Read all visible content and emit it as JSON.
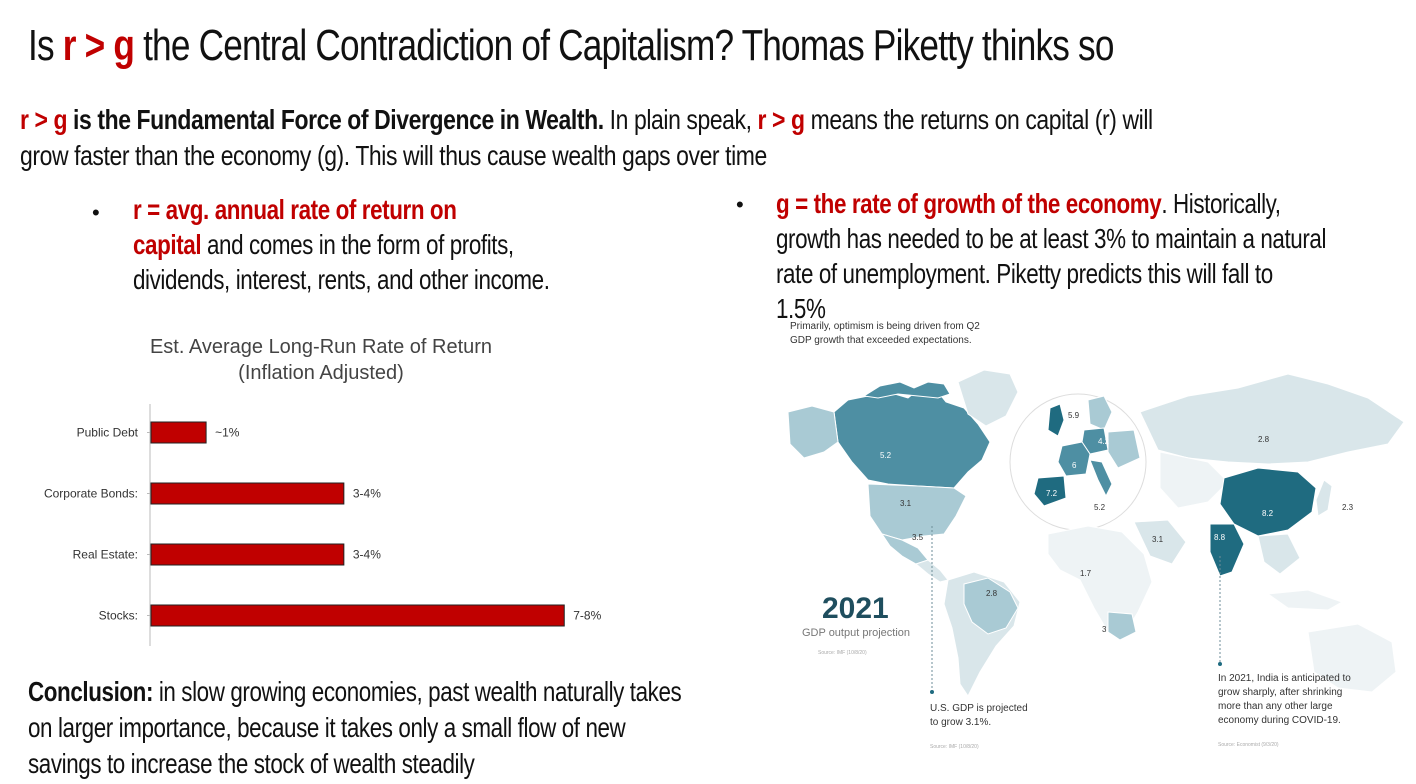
{
  "title": {
    "prefix": "Is ",
    "formula": "r > g",
    "suffix": " the Central Contradiction of Capitalism? Thomas Piketty thinks so"
  },
  "intro": {
    "formula_1": "r > g",
    "bold_text": " is the Fundamental Force of Divergence in Wealth.",
    "text_1": " In plain speak, ",
    "formula_2": "r > g",
    "text_2": " means the returns on capital (r) will",
    "line_2": "grow faster than the economy (g). This will thus cause wealth gaps over time"
  },
  "bullet_r": {
    "red_line_1": "r = avg. annual rate of return on",
    "red_line_2": "capital",
    "line_2_rest": " and comes in the form of profits,",
    "line_3": "dividends, interest, rents, and other income."
  },
  "bullet_g": {
    "red_text": "g = the rate of growth of the economy",
    "line_1_rest": ". Historically,",
    "line_2": "growth has needed to be at least 3% to maintain a natural",
    "line_3": "rate of unemployment. Piketty predicts this will fall to",
    "line_4": "1.5%"
  },
  "bullet_symbol": "•",
  "chart_data": {
    "type": "bar",
    "orientation": "horizontal",
    "title": "Est. Average Long-Run Rate of Return",
    "subtitle": "(Inflation Adjusted)",
    "categories": [
      "Public Debt",
      "Corporate Bonds:",
      "Real Estate:",
      "Stocks:"
    ],
    "values": [
      1,
      3.5,
      3.5,
      7.5
    ],
    "data_labels": [
      "~1%",
      "3-4%",
      "3-4%",
      "7-8%"
    ],
    "bar_color": "#c00000",
    "xlim": [
      0,
      10
    ],
    "grid": false
  },
  "conclusion": {
    "bold": "Conclusion:",
    "line_1": " in slow growing economies, past wealth naturally takes",
    "line_2": "on larger importance, because it takes only a small flow of new",
    "line_3": "savings to increase the stock of wealth steadily"
  },
  "map": {
    "header_1": "Primarily, optimism is being driven from Q2",
    "header_2": "GDP growth that exceeded expectations.",
    "year": "2021",
    "subtitle": "GDP output projection",
    "source_1": "Source: IMF (10/8/20)",
    "us_note_1": "U.S. GDP is projected",
    "us_note_2": "to grow 3.1%.",
    "us_source": "Source: IMF (10/8/20)",
    "india_note_1": "In 2021, India is anticipated to",
    "india_note_2": "grow sharply, after shrinking",
    "india_note_3": "more than any other large",
    "india_note_4": "economy during COVID-19.",
    "india_source": "Source: Economist (9/3/20)",
    "labels": {
      "canada": "5.2",
      "usa": "3.1",
      "mexico": "3.5",
      "brazil": "2.8",
      "uk": "5.9",
      "germany": "4.2",
      "france": "6",
      "spain": "7.2",
      "italy": "5.2",
      "russia": "2.8",
      "china": "8.2",
      "japan": "2.3",
      "india": "8.8",
      "saudi": "3.1",
      "africa": "1.7",
      "south_africa": "3"
    },
    "colors": {
      "dark": "#1f6b80",
      "mid": "#4e8fa3",
      "light": "#a9cad4",
      "pale": "#d9e6ea",
      "faint": "#eef3f5"
    }
  }
}
